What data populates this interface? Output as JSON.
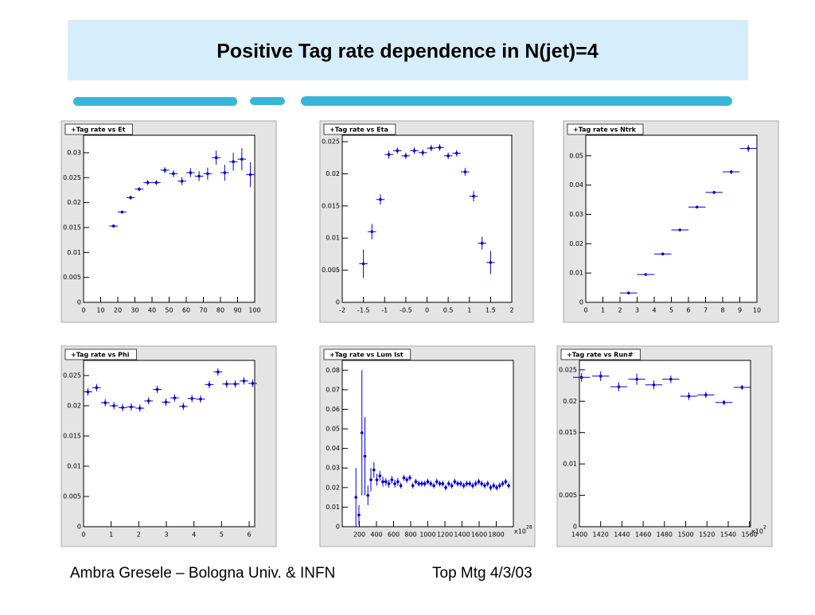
{
  "slide_title": "Positive Tag rate dependence in N(jet)=4",
  "footer": {
    "author": "Ambra Gresele – Bologna Univ. & INFN",
    "meeting": "Top Mtg 4/3/03"
  },
  "chart_data": [
    {
      "type": "scatter",
      "title": "+Tag rate vs Et",
      "color": "#0000cc",
      "x": [
        17.5,
        22.5,
        27.5,
        32.5,
        37.5,
        42.5,
        47.5,
        52.5,
        57.5,
        62.5,
        67.5,
        72.5,
        77.5,
        82.5,
        87.5,
        92.5,
        97.5
      ],
      "values": [
        0.0153,
        0.0181,
        0.021,
        0.0227,
        0.024,
        0.024,
        0.0265,
        0.0258,
        0.0243,
        0.026,
        0.0253,
        0.0258,
        0.029,
        0.026,
        0.0282,
        0.0287,
        0.0256
      ],
      "errors": [
        0.0003,
        0.0003,
        0.0004,
        0.0004,
        0.0005,
        0.0005,
        0.0006,
        0.0007,
        0.0008,
        0.0009,
        0.001,
        0.0012,
        0.0014,
        0.0016,
        0.0018,
        0.0022,
        0.0025
      ],
      "xerr": 2.5,
      "xlim": [
        0,
        100
      ],
      "xticks": [
        0,
        10,
        20,
        30,
        40,
        50,
        60,
        70,
        80,
        90,
        100
      ],
      "ylim": [
        0,
        0.0335
      ],
      "yticks": [
        0,
        0.005,
        0.01,
        0.015,
        0.02,
        0.025,
        0.03
      ]
    },
    {
      "type": "scatter",
      "title": "+Tag rate vs Eta",
      "color": "#0000cc",
      "x": [
        -1.5,
        -1.3,
        -1.1,
        -0.9,
        -0.7,
        -0.5,
        -0.3,
        -0.1,
        0.1,
        0.3,
        0.5,
        0.7,
        0.9,
        1.1,
        1.3,
        1.5
      ],
      "values": [
        0.006,
        0.011,
        0.016,
        0.023,
        0.0236,
        0.0228,
        0.0236,
        0.0233,
        0.024,
        0.0241,
        0.0228,
        0.0232,
        0.0203,
        0.0165,
        0.0092,
        0.0062
      ],
      "errors": [
        0.0022,
        0.0012,
        0.0008,
        0.0006,
        0.0005,
        0.0005,
        0.0005,
        0.0005,
        0.0005,
        0.0005,
        0.0005,
        0.0005,
        0.0006,
        0.0008,
        0.001,
        0.0018
      ],
      "xerr": 0.1,
      "xlim": [
        -2,
        2
      ],
      "xticks": [
        -2,
        -1.5,
        -1,
        -0.5,
        0,
        0.5,
        1,
        1.5,
        2
      ],
      "ylim": [
        0,
        0.026
      ],
      "yticks": [
        0,
        0.005,
        0.01,
        0.015,
        0.02,
        0.025
      ]
    },
    {
      "type": "scatter",
      "title": "+Tag rate vs Ntrk",
      "color": "#0000cc",
      "x": [
        2.5,
        3.5,
        4.5,
        5.5,
        6.5,
        7.5,
        8.5,
        9.5
      ],
      "values": [
        0.0032,
        0.0095,
        0.0165,
        0.0247,
        0.0325,
        0.0375,
        0.0445,
        0.0525
      ],
      "errors": [
        0.0002,
        0.0003,
        0.0003,
        0.0004,
        0.0004,
        0.0005,
        0.0007,
        0.0012
      ],
      "xerr": 0.5,
      "xlim": [
        0,
        10
      ],
      "xticks": [
        0,
        1,
        2,
        3,
        4,
        5,
        6,
        7,
        8,
        9,
        10
      ],
      "ylim": [
        0,
        0.057
      ],
      "yticks": [
        0,
        0.01,
        0.02,
        0.03,
        0.04,
        0.05
      ]
    },
    {
      "type": "scatter",
      "title": "+Tag rate vs Phi",
      "color": "#0000cc",
      "x": [
        0.157,
        0.471,
        0.785,
        1.1,
        1.414,
        1.728,
        2.042,
        2.356,
        2.67,
        2.985,
        3.299,
        3.613,
        3.927,
        4.241,
        4.555,
        4.869,
        5.184,
        5.498,
        5.812,
        6.126
      ],
      "values": [
        0.0223,
        0.023,
        0.0205,
        0.02,
        0.0197,
        0.0198,
        0.0196,
        0.0208,
        0.0227,
        0.0206,
        0.0213,
        0.0199,
        0.0212,
        0.0211,
        0.0235,
        0.0256,
        0.0236,
        0.0236,
        0.0241,
        0.0237
      ],
      "errors": [
        0.0006,
        0.0006,
        0.0006,
        0.0006,
        0.0006,
        0.0006,
        0.0006,
        0.0006,
        0.0006,
        0.0006,
        0.0006,
        0.0006,
        0.0006,
        0.0006,
        0.0006,
        0.0006,
        0.0006,
        0.0006,
        0.0006,
        0.0006
      ],
      "xerr": 0.157,
      "xlim": [
        0,
        6.2
      ],
      "xticks": [
        0,
        1,
        2,
        3,
        4,
        5,
        6
      ],
      "ylim": [
        0,
        0.0275
      ],
      "yticks": [
        0,
        0.005,
        0.01,
        0.015,
        0.02,
        0.025
      ]
    },
    {
      "type": "scatter",
      "title": "+Tag rate vs Lum Ist",
      "color": "#0000cc",
      "x_multiplier": "x10",
      "x_exponent": 28,
      "x": [
        160,
        195,
        230,
        265,
        300,
        335,
        370,
        405,
        440,
        475,
        510,
        545,
        580,
        615,
        650,
        685,
        720,
        755,
        790,
        825,
        860,
        895,
        930,
        965,
        1000,
        1035,
        1070,
        1105,
        1140,
        1175,
        1210,
        1245,
        1280,
        1315,
        1350,
        1385,
        1420,
        1455,
        1490,
        1525,
        1560,
        1595,
        1630,
        1665,
        1700,
        1735,
        1770,
        1805,
        1840,
        1875,
        1910,
        1945
      ],
      "values": [
        0.015,
        0.006,
        0.048,
        0.036,
        0.016,
        0.024,
        0.029,
        0.024,
        0.026,
        0.023,
        0.023,
        0.022,
        0.024,
        0.022,
        0.023,
        0.021,
        0.025,
        0.024,
        0.025,
        0.021,
        0.023,
        0.022,
        0.022,
        0.022,
        0.023,
        0.022,
        0.021,
        0.023,
        0.022,
        0.022,
        0.02,
        0.022,
        0.021,
        0.023,
        0.022,
        0.022,
        0.021,
        0.022,
        0.022,
        0.021,
        0.022,
        0.023,
        0.022,
        0.021,
        0.022,
        0.02,
        0.021,
        0.02,
        0.021,
        0.022,
        0.023,
        0.021
      ],
      "errors": [
        0.015,
        0.005,
        0.032,
        0.02,
        0.005,
        0.006,
        0.004,
        0.003,
        0.0025,
        0.0025,
        0.002,
        0.002,
        0.002,
        0.002,
        0.002,
        0.0015,
        0.0015,
        0.0015,
        0.0015,
        0.0015,
        0.0015,
        0.0015,
        0.0015,
        0.0015,
        0.0015,
        0.0015,
        0.0015,
        0.0015,
        0.0015,
        0.0015,
        0.0015,
        0.0015,
        0.0015,
        0.0015,
        0.0015,
        0.0015,
        0.0015,
        0.0015,
        0.0015,
        0.0015,
        0.0015,
        0.0015,
        0.0015,
        0.0015,
        0.0015,
        0.0015,
        0.0015,
        0.0015,
        0.0015,
        0.0015,
        0.0015,
        0.0015
      ],
      "xerr": 17.5,
      "xlim": [
        0,
        2000
      ],
      "xticks": [
        200,
        400,
        600,
        800,
        1000,
        1200,
        1400,
        1600,
        1800
      ],
      "ylim": [
        0,
        0.085
      ],
      "yticks": [
        0,
        0.01,
        0.02,
        0.03,
        0.04,
        0.05,
        0.06,
        0.07,
        0.08
      ]
    },
    {
      "type": "scatter",
      "title": "+Tag rate vs Run#",
      "color": "#0000cc",
      "x_multiplier": "x10",
      "x_exponent": 2,
      "x": [
        1402,
        1420,
        1437,
        1454,
        1470,
        1486,
        1503,
        1519,
        1536,
        1553
      ],
      "values": [
        0.0238,
        0.024,
        0.0223,
        0.0235,
        0.0226,
        0.0235,
        0.0208,
        0.021,
        0.0198,
        0.0222
      ],
      "errors": [
        0.0007,
        0.0008,
        0.0007,
        0.0009,
        0.0007,
        0.0006,
        0.0006,
        0.0005,
        0.0004,
        0.0004
      ],
      "xerr": 8,
      "xlim": [
        1400,
        1561
      ],
      "xticks": [
        1400,
        1420,
        1440,
        1460,
        1480,
        1500,
        1520,
        1540,
        1560
      ],
      "ylim": [
        0,
        0.0265
      ],
      "yticks": [
        0,
        0.005,
        0.01,
        0.015,
        0.02,
        0.025
      ]
    }
  ]
}
